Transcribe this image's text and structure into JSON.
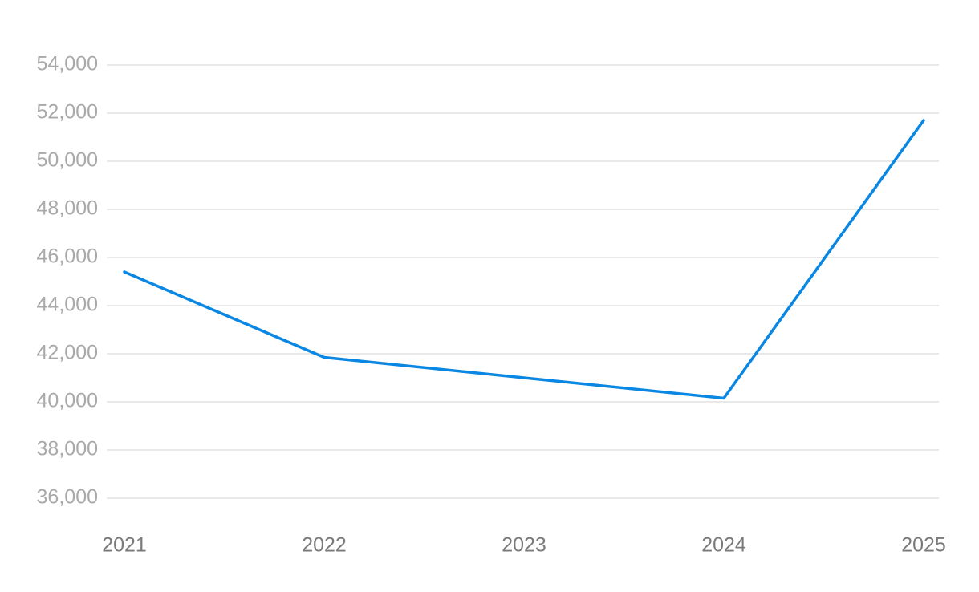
{
  "chart_data": {
    "type": "line",
    "categories": [
      "2021",
      "2022",
      "2023",
      "2024",
      "2025"
    ],
    "series": [
      {
        "color": "#0a87e2",
        "values": [
          45400,
          41850,
          41000,
          40150,
          51700
        ]
      }
    ],
    "ylim": [
      36000,
      54000
    ],
    "yticks": [
      {
        "value": 36000,
        "label": "36,000"
      },
      {
        "value": 38000,
        "label": "38,000"
      },
      {
        "value": 40000,
        "label": "40,000"
      },
      {
        "value": 42000,
        "label": "42,000"
      },
      {
        "value": 44000,
        "label": "44,000"
      },
      {
        "value": 46000,
        "label": "46,000"
      },
      {
        "value": 48000,
        "label": "48,000"
      },
      {
        "value": 50000,
        "label": "50,000"
      },
      {
        "value": 52000,
        "label": "52,000"
      },
      {
        "value": 54000,
        "label": "54,000"
      }
    ],
    "grid": true
  }
}
